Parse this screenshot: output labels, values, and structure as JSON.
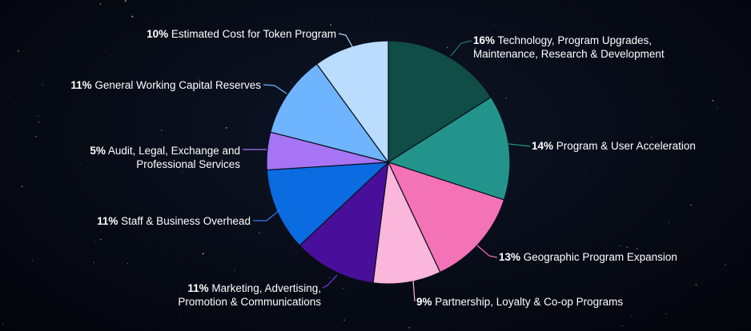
{
  "chart_data": {
    "type": "pie",
    "start_angle_deg": 0,
    "direction": "clockwise",
    "slices": [
      {
        "pct_label": "16%",
        "value": 16,
        "lines": [
          "Technology, Program Upgrades,",
          "Maintenance, Research & Development"
        ],
        "color": "#0f4d46",
        "leader_color": "#1f7a70"
      },
      {
        "pct_label": "14%",
        "value": 14,
        "lines": [
          "Program & User Acceleration"
        ],
        "color": "#23948b",
        "leader_color": "#23948b"
      },
      {
        "pct_label": "13%",
        "value": 13,
        "lines": [
          "Geographic Program Expansion"
        ],
        "color": "#f472b6",
        "leader_color": "#f472b6"
      },
      {
        "pct_label": "9%",
        "value": 9,
        "lines": [
          "Partnership, Loyalty & Co-op Programs"
        ],
        "color": "#fbb6dc",
        "leader_color": "#fbb6dc"
      },
      {
        "pct_label": "11%",
        "value": 11,
        "lines": [
          "Marketing, Advertising,",
          "Promotion & Communications"
        ],
        "color": "#4a0f9a",
        "leader_color": "#7c3aed"
      },
      {
        "pct_label": "11%",
        "value": 11,
        "lines": [
          "Staff & Business Overhead"
        ],
        "color": "#0b6be0",
        "leader_color": "#2b7fe8"
      },
      {
        "pct_label": "5%",
        "value": 5,
        "lines": [
          "Audit, Legal, Exchange and",
          "Professional Services"
        ],
        "color": "#a674f5",
        "leader_color": "#a674f5"
      },
      {
        "pct_label": "11%",
        "value": 11,
        "lines": [
          "General Working Capital Reserves"
        ],
        "color": "#6fb4ff",
        "leader_color": "#6fb4ff"
      },
      {
        "pct_label": "10%",
        "value": 10,
        "lines": [
          "Estimated Cost for Token Program"
        ],
        "color": "#b9dcff",
        "leader_color": "#b9dcff"
      }
    ]
  }
}
